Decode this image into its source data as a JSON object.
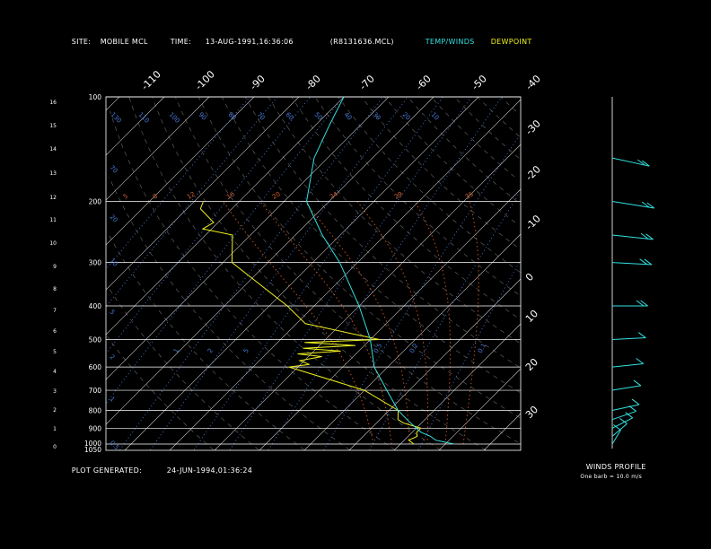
{
  "header": {
    "site_label": "SITE:",
    "site_value": "MOBILE MCL",
    "time_label": "TIME:",
    "time_value": "13-AUG-1991,16:36:06",
    "file_value": "(R8131636.MCL)",
    "temp_winds_label": "TEMP/WINDS",
    "dewpoint_label": "DEWPOINT"
  },
  "footer": {
    "generated_label": "PLOT GENERATED:",
    "generated_value": "24-JUN-1994,01:36:24"
  },
  "winds_panel": {
    "title": "WINDS PROFILE",
    "note": "One barb = 10.0 m/s"
  },
  "colors": {
    "temp": "#33e0e0",
    "dewpoint": "#f0f020",
    "isobar": "#ffffff",
    "isotherm": "#c8c8c8",
    "dry_adiabat": "#6a6a6a",
    "mixing_ratio": "#4a7ad8",
    "moist_adiabat": "#d85a20",
    "labels_blue": "#4a7ad8",
    "labels_orange": "#d86030"
  },
  "chart_data": {
    "type": "line",
    "title": "",
    "diagram": "skew-T log-p",
    "pressure_labels": [
      "100",
      "200",
      "300",
      "400",
      "500",
      "600",
      "700",
      "800",
      "900",
      "1000",
      "1050"
    ],
    "height_km_labels": [
      "0",
      "1",
      "2",
      "3",
      "4",
      "5",
      "6",
      "7",
      "8",
      "9",
      "10",
      "11",
      "12",
      "13",
      "14",
      "15",
      "16"
    ],
    "temp_labels_top": [
      "-110",
      "-100",
      "-90",
      "-80",
      "-70",
      "-60",
      "-50",
      "-40"
    ],
    "temp_labels_right": [
      "-30",
      "-20",
      "-10",
      "0",
      "10",
      "20",
      "30"
    ],
    "theta_labels": [
      "5",
      "8",
      "12",
      "16",
      "20",
      "24",
      "29",
      "35"
    ],
    "mixing_labels_top": [
      "130",
      "110",
      "100",
      "90",
      "80",
      "70",
      "60",
      "50",
      "40",
      "30",
      "20",
      "10"
    ],
    "mixing_labels_left": [
      "70",
      "20",
      "10",
      "5",
      "2",
      "1",
      "0.5"
    ],
    "mixing_labels_mid": [
      "1",
      "2",
      "5",
      "0.5",
      "0.2",
      "0.1"
    ],
    "series": [
      {
        "name": "TEMP/WINDS",
        "pressure_hPa": [
          1000,
          975,
          950,
          925,
          900,
          850,
          800,
          700,
          600,
          500,
          400,
          300,
          250,
          200,
          150,
          120,
          100
        ],
        "temp_C": [
          32,
          27,
          25,
          22,
          20,
          16,
          12,
          5,
          -3,
          -10,
          -20,
          -34,
          -44,
          -55,
          -63,
          -67,
          -70
        ]
      },
      {
        "name": "DEWPOINT",
        "pressure_hPa": [
          1000,
          975,
          950,
          925,
          900,
          870,
          850,
          800,
          700,
          600,
          590,
          575,
          560,
          550,
          540,
          530,
          520,
          510,
          500,
          450,
          400,
          300,
          250,
          240,
          230,
          210,
          200
        ],
        "temp_C": [
          23,
          21,
          22,
          21,
          21,
          16,
          14,
          12,
          0,
          -22,
          -18,
          -21,
          -17,
          -23,
          -14,
          -23,
          -12,
          -24,
          -8,
          -28,
          -36,
          -58,
          -64,
          -72,
          -71,
          -77,
          -78
        ]
      }
    ],
    "winds": {
      "units": "m/s",
      "pressure_hPa": [
        1000,
        950,
        900,
        850,
        800,
        700,
        600,
        500,
        400,
        300,
        250,
        200,
        150
      ],
      "speed_ms": [
        5,
        6,
        7,
        8,
        9,
        10,
        12,
        14,
        16,
        20,
        22,
        24,
        20
      ],
      "direction_deg": [
        200,
        215,
        230,
        240,
        250,
        255,
        260,
        265,
        270,
        275,
        280,
        285,
        290
      ]
    }
  }
}
